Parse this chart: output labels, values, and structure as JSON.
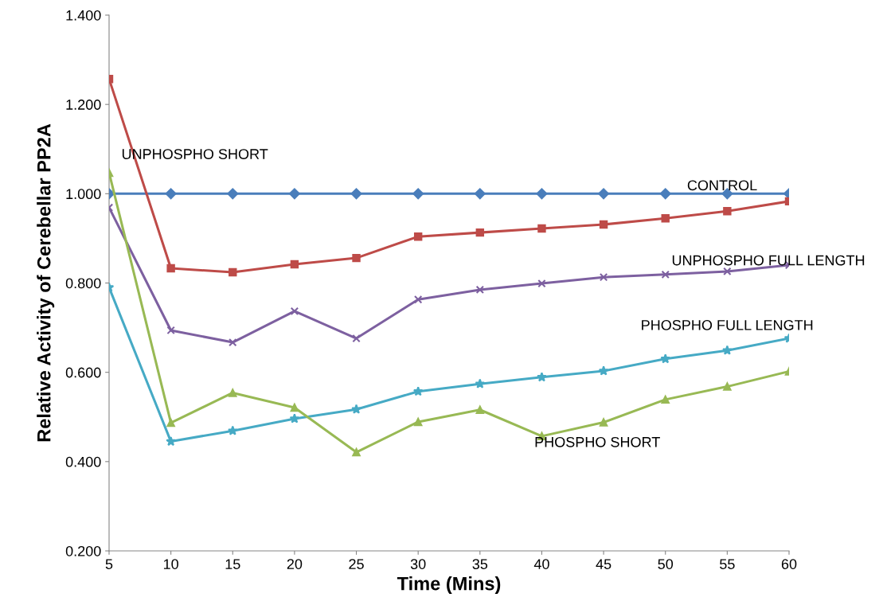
{
  "chart_data": {
    "type": "line",
    "xlabel": "Time (Mins)",
    "ylabel": "Relative Activity of Cerebellar PP2A",
    "categories": [
      "5",
      "10",
      "15",
      "20",
      "25",
      "30",
      "35",
      "40",
      "45",
      "50",
      "55",
      "60"
    ],
    "ylim": [
      0.2,
      1.4
    ],
    "yticks": [
      {
        "value": 0.2,
        "label": "0.200"
      },
      {
        "value": 0.4,
        "label": "0.400"
      },
      {
        "value": 0.6,
        "label": "0.600"
      },
      {
        "value": 0.8,
        "label": "0.800"
      },
      {
        "value": 1.0,
        "label": "1.000"
      },
      {
        "value": 1.2,
        "label": "1.200"
      },
      {
        "value": 1.4,
        "label": "1.400"
      }
    ],
    "grid": false,
    "legend": false,
    "series": [
      {
        "name": "CONTROL",
        "color": "#4a7ebb",
        "marker": "diamond",
        "values": [
          1.0,
          1.0,
          1.0,
          1.0,
          1.0,
          1.0,
          1.0,
          1.0,
          1.0,
          1.0,
          1.0,
          1.0
        ]
      },
      {
        "name": "UNPHOSPHO SHORT",
        "color": "#be4b48",
        "marker": "square",
        "values": [
          1.257,
          0.833,
          0.824,
          0.842,
          0.856,
          0.904,
          0.913,
          0.922,
          0.931,
          0.945,
          0.961,
          0.983
        ]
      },
      {
        "name": "UNPHOSPHO FULL LENGTH",
        "color": "#7d60a0",
        "marker": "cross",
        "values": [
          0.969,
          0.694,
          0.667,
          0.737,
          0.676,
          0.763,
          0.785,
          0.799,
          0.813,
          0.819,
          0.826,
          0.84
        ]
      },
      {
        "name": "PHOSPHO FULL LENGTH",
        "color": "#46aac5",
        "marker": "star",
        "values": [
          0.79,
          0.445,
          0.469,
          0.496,
          0.517,
          0.557,
          0.574,
          0.589,
          0.603,
          0.63,
          0.649,
          0.676
        ]
      },
      {
        "name": "PHOSPHO SHORT",
        "color": "#98b954",
        "marker": "triangle",
        "values": [
          1.047,
          0.487,
          0.554,
          0.521,
          0.421,
          0.489,
          0.516,
          0.457,
          0.488,
          0.539,
          0.568,
          0.602
        ]
      }
    ]
  }
}
